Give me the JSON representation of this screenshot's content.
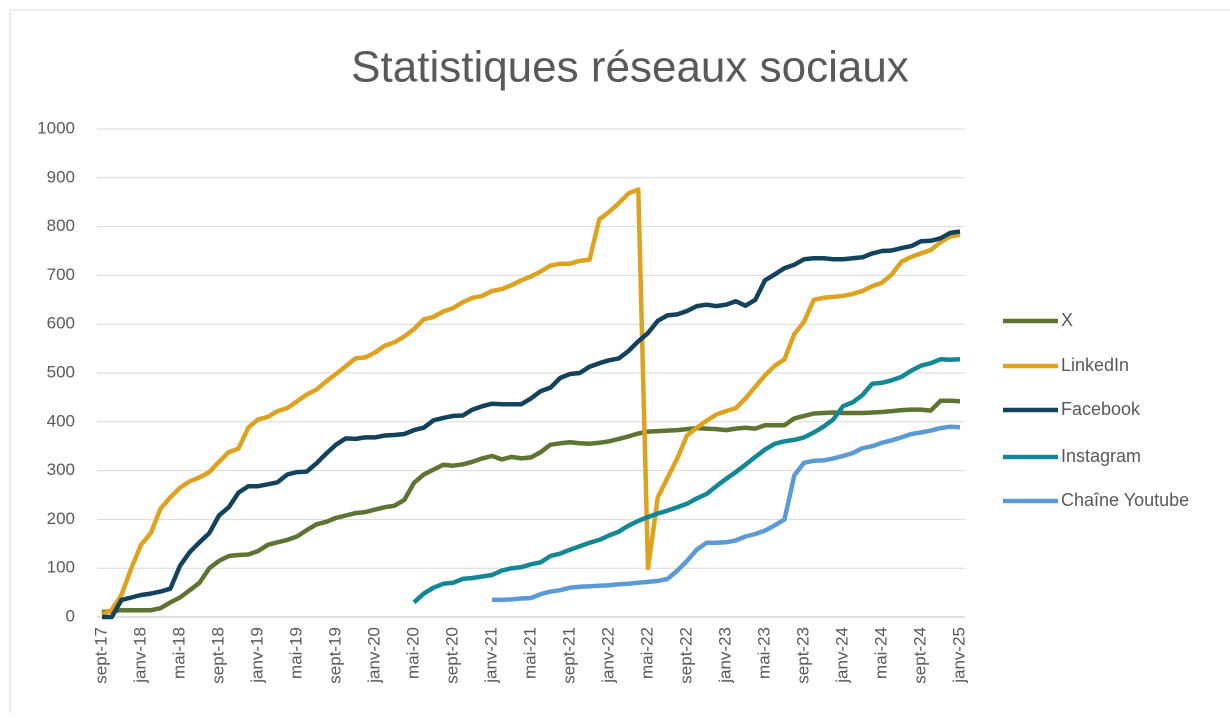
{
  "chart_data": {
    "type": "line",
    "title": "Statistiques réseaux sociaux",
    "categories": [
      "sept-17",
      null,
      null,
      null,
      "janv-18",
      null,
      null,
      null,
      "mai-18",
      null,
      null,
      null,
      "sept-18",
      null,
      null,
      null,
      "janv-19",
      null,
      null,
      null,
      "mai-19",
      null,
      null,
      null,
      "sept-19",
      null,
      null,
      null,
      "janv-20",
      null,
      null,
      null,
      "mai-20",
      null,
      null,
      null,
      "sept-20",
      null,
      null,
      null,
      "janv-21",
      null,
      null,
      null,
      "mai-21",
      null,
      null,
      null,
      "sept-21",
      null,
      null,
      null,
      "janv-22",
      null,
      null,
      null,
      "mai-22",
      null,
      null,
      null,
      "sept-22",
      null,
      null,
      null,
      "janv-23",
      null,
      null,
      null,
      "mai-23",
      null,
      null,
      null,
      "sept-23",
      null,
      null,
      null,
      "janv-24",
      null,
      null,
      null,
      "mai-24",
      null,
      null,
      null,
      "sept-24",
      null,
      null,
      null,
      "janv-25"
    ],
    "series": [
      {
        "name": "X",
        "color": "#5e7432",
        "values": [
          10,
          12,
          14,
          14,
          14,
          14,
          18,
          30,
          40,
          55,
          70,
          100,
          115,
          125,
          127,
          128,
          135,
          148,
          153,
          158,
          165,
          178,
          190,
          195,
          203,
          208,
          213,
          215,
          220,
          225,
          228,
          240,
          275,
          292,
          302,
          312,
          310,
          313,
          318,
          325,
          330,
          323,
          328,
          325,
          327,
          338,
          353,
          356,
          358,
          356,
          355,
          357,
          360,
          365,
          370,
          376,
          380,
          381,
          382,
          383,
          385,
          387,
          386,
          385,
          383,
          386,
          388,
          386,
          393,
          393,
          393,
          407,
          412,
          417,
          418,
          419,
          418,
          418,
          418,
          419,
          420,
          422,
          424,
          425,
          425,
          423,
          443,
          443,
          442
        ]
      },
      {
        "name": "LinkedIn",
        "color": "#dea21f",
        "values": [
          5,
          15,
          45,
          100,
          148,
          172,
          222,
          245,
          265,
          278,
          286,
          297,
          318,
          338,
          345,
          388,
          405,
          410,
          422,
          428,
          442,
          456,
          466,
          483,
          498,
          514,
          530,
          532,
          542,
          556,
          563,
          575,
          590,
          610,
          615,
          626,
          633,
          645,
          654,
          658,
          668,
          672,
          680,
          690,
          698,
          708,
          720,
          724,
          724,
          730,
          732,
          815,
          830,
          848,
          868,
          876,
          100,
          245,
          285,
          325,
          372,
          388,
          402,
          415,
          422,
          428,
          448,
          472,
          495,
          515,
          528,
          580,
          605,
          650,
          654,
          656,
          658,
          662,
          668,
          678,
          685,
          702,
          728,
          738,
          745,
          752,
          768,
          780,
          783
        ]
      },
      {
        "name": "Facebook",
        "color": "#13425c",
        "values": [
          0,
          0,
          35,
          40,
          45,
          48,
          52,
          58,
          105,
          133,
          153,
          172,
          208,
          225,
          255,
          268,
          268,
          272,
          276,
          292,
          297,
          298,
          315,
          335,
          353,
          366,
          365,
          368,
          368,
          372,
          373,
          375,
          383,
          388,
          403,
          408,
          412,
          413,
          425,
          432,
          437,
          436,
          436,
          436,
          448,
          463,
          470,
          490,
          498,
          500,
          513,
          520,
          526,
          530,
          545,
          565,
          582,
          607,
          618,
          620,
          627,
          637,
          640,
          637,
          640,
          647,
          638,
          650,
          690,
          702,
          715,
          722,
          733,
          735,
          735,
          733,
          733,
          735,
          737,
          745,
          750,
          751,
          756,
          760,
          770,
          771,
          776,
          787,
          790
        ]
      },
      {
        "name": "Instagram",
        "color": "#138794",
        "values": [
          null,
          null,
          null,
          null,
          null,
          null,
          null,
          null,
          null,
          null,
          null,
          null,
          null,
          null,
          null,
          null,
          null,
          null,
          null,
          null,
          null,
          null,
          null,
          null,
          null,
          null,
          null,
          null,
          null,
          null,
          null,
          null,
          30,
          48,
          60,
          68,
          70,
          78,
          80,
          83,
          86,
          95,
          100,
          102,
          108,
          112,
          125,
          130,
          138,
          145,
          152,
          158,
          167,
          175,
          187,
          197,
          205,
          212,
          218,
          225,
          232,
          243,
          252,
          268,
          283,
          297,
          312,
          328,
          343,
          355,
          360,
          363,
          368,
          378,
          390,
          405,
          432,
          440,
          455,
          478,
          480,
          485,
          492,
          505,
          515,
          520,
          528,
          527,
          528
        ]
      },
      {
        "name": "Chaîne Youtube",
        "color": "#5b9bd5",
        "values": [
          null,
          null,
          null,
          null,
          null,
          null,
          null,
          null,
          null,
          null,
          null,
          null,
          null,
          null,
          null,
          null,
          null,
          null,
          null,
          null,
          null,
          null,
          null,
          null,
          null,
          null,
          null,
          null,
          null,
          null,
          null,
          null,
          null,
          null,
          null,
          null,
          null,
          null,
          null,
          null,
          35,
          35,
          36,
          38,
          39,
          47,
          52,
          55,
          60,
          62,
          63,
          64,
          65,
          67,
          68,
          70,
          72,
          74,
          78,
          95,
          115,
          138,
          152,
          152,
          153,
          157,
          165,
          170,
          177,
          188,
          200,
          290,
          316,
          320,
          321,
          325,
          330,
          336,
          346,
          350,
          357,
          362,
          368,
          375,
          378,
          382,
          387,
          390,
          389
        ]
      }
    ],
    "ylim": [
      0,
      1000
    ],
    "yticks": [
      0,
      100,
      200,
      300,
      400,
      500,
      600,
      700,
      800,
      900,
      1000
    ],
    "grid": true,
    "legend": "right"
  }
}
